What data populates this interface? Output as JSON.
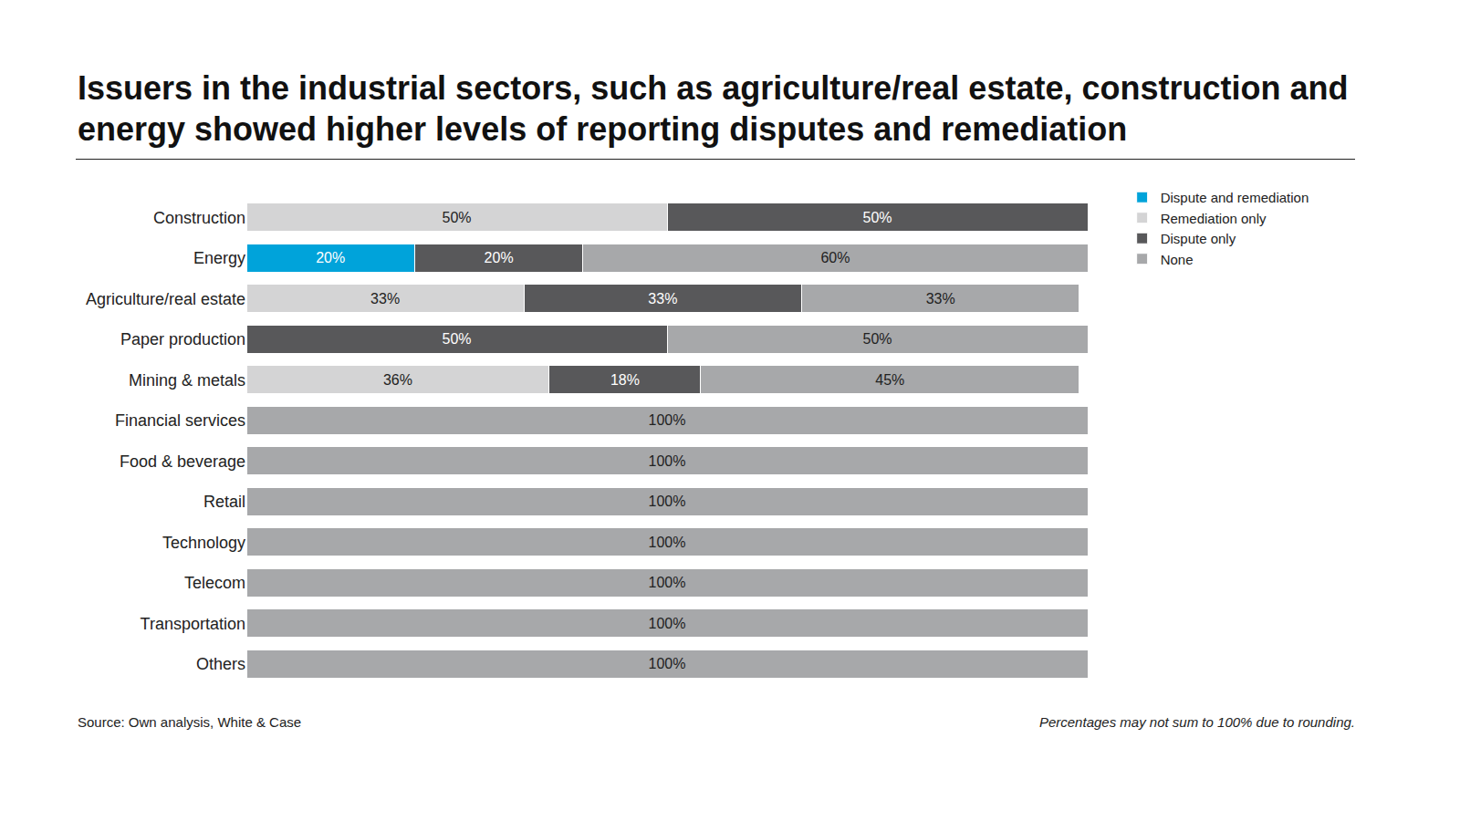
{
  "chart_data": {
    "type": "bar",
    "orientation": "horizontal",
    "stacked": true,
    "data_labels": true,
    "tick_labels": "y",
    "grid": false,
    "legend": "top right",
    "title": "Issuers in the industrial sectors, such as agriculture/real estate, construction and energy showed higher levels of reporting disputes and remediation",
    "source": "Source: Own analysis, White & Case",
    "note": "Percentages may not sum to 100% due to rounding.",
    "xlim": [
      0,
      100
    ],
    "categories": [
      "Construction",
      "Energy",
      "Agriculture/real estate",
      "Paper production",
      "Mining & metals",
      "Financial services",
      "Food & beverage",
      "Retail",
      "Technology",
      "Telecom",
      "Transportation",
      "Others"
    ],
    "series": [
      {
        "name": "Dispute and remediation",
        "color": "#00a3da",
        "values": [
          null,
          20,
          null,
          null,
          null,
          null,
          null,
          null,
          null,
          null,
          null,
          null
        ],
        "value_labels": [
          null,
          "20%",
          null,
          null,
          null,
          null,
          null,
          null,
          null,
          null,
          null,
          null
        ]
      },
      {
        "name": "Remediation only",
        "color": "#d4d4d5",
        "values": [
          50,
          null,
          33,
          null,
          36,
          null,
          null,
          null,
          null,
          null,
          null,
          null
        ],
        "value_labels": [
          "50%",
          null,
          "33%",
          null,
          "36%",
          null,
          null,
          null,
          null,
          null,
          null,
          null
        ]
      },
      {
        "name": "Dispute only",
        "color": "#58585a",
        "values": [
          50,
          20,
          33,
          50,
          18,
          null,
          null,
          null,
          null,
          null,
          null,
          null
        ],
        "value_labels": [
          "50%",
          "20%",
          "33%",
          "50%",
          "18%",
          null,
          null,
          null,
          null,
          null,
          null,
          null
        ]
      },
      {
        "name": "None",
        "color": "#a7a8aa",
        "values": [
          null,
          60,
          33,
          50,
          45,
          100,
          100,
          100,
          100,
          100,
          100,
          100
        ],
        "value_labels": [
          null,
          "60%",
          "33%",
          "50%",
          "45%",
          "100%",
          "100%",
          "100%",
          "100%",
          "100%",
          "100%",
          "100%"
        ]
      }
    ]
  }
}
